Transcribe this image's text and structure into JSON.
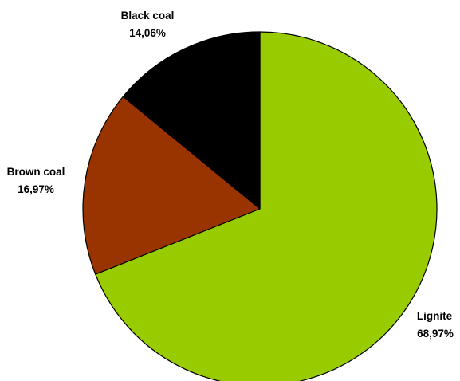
{
  "chart_data": {
    "type": "pie",
    "title": "",
    "start_angle_deg": 90,
    "direction": "clockwise",
    "slices": [
      {
        "name": "Lignite",
        "value": 68.97,
        "label": "68,97%",
        "color": "#99cc00"
      },
      {
        "name": "Brown coal",
        "value": 16.97,
        "label": "16,97%",
        "color": "#993300"
      },
      {
        "name": "Black coal",
        "value": 14.06,
        "label": "14,06%",
        "color": "#000000"
      }
    ],
    "legend": "none"
  }
}
